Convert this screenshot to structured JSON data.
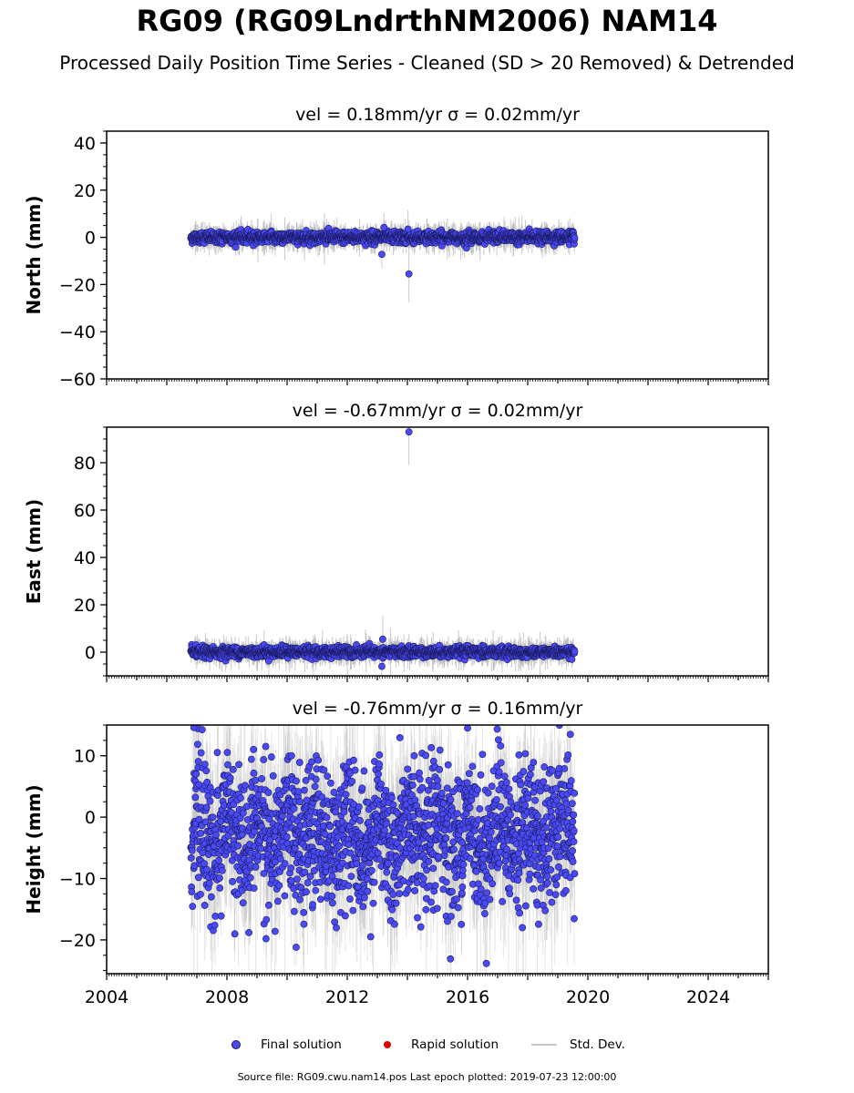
{
  "page": {
    "title": "RG09 (RG09LndrthNM2006) NAM14",
    "subtitle": "Processed Daily Position Time Series - Cleaned (SD > 20 Removed) & Detrended",
    "source_note": "Source file: RG09.cwu.nam14.pos  Last epoch plotted: 2019-07-23 12:00:00"
  },
  "legend": [
    {
      "label": "Final solution",
      "kind": "dot",
      "color": "#4a4af5"
    },
    {
      "label": "Rapid solution",
      "kind": "dot",
      "color": "#dd0000"
    },
    {
      "label": "Std. Dev.",
      "kind": "line",
      "color": "#c8c8c8"
    }
  ],
  "colors": {
    "final": "#4a4af5",
    "final_edge": "#1a1a60",
    "stddev": "#b4b4b4",
    "rapid": "#dd0000"
  },
  "chart_data": [
    {
      "type": "scatter",
      "title": "vel = 0.18mm/yr   σ = 0.02mm/yr",
      "ylabel": "North (mm)",
      "xlim": [
        2004,
        2026
      ],
      "ylim": [
        -60,
        45
      ],
      "yticks": [
        40,
        20,
        0,
        -20,
        -40,
        -60
      ],
      "xticks": [],
      "data_range": [
        2006.8,
        2019.56
      ],
      "series": [
        {
          "kind": "final_band",
          "center": 0,
          "spread": 1.2,
          "error_spread": 2.5
        },
        {
          "kind": "outliers",
          "points": [
            {
              "x": 2013.15,
              "y": -7.2,
              "err": 6
            },
            {
              "x": 2013.22,
              "y": 4.2,
              "err": 6
            },
            {
              "x": 2014.05,
              "y": -15.5,
              "err": 12
            },
            {
              "x": 2014.02,
              "y": 3.5,
              "err": 8
            }
          ]
        }
      ]
    },
    {
      "type": "scatter",
      "title": "vel = -0.67mm/yr   σ = 0.02mm/yr",
      "ylabel": "East (mm)",
      "xlim": [
        2004,
        2026
      ],
      "ylim": [
        -10,
        95
      ],
      "yticks": [
        80,
        60,
        40,
        20,
        0
      ],
      "xticks": [],
      "data_range": [
        2006.8,
        2019.56
      ],
      "series": [
        {
          "kind": "final_band",
          "center": 0,
          "spread": 1.1,
          "error_spread": 2.5
        },
        {
          "kind": "outliers",
          "points": [
            {
              "x": 2014.05,
              "y": 93,
              "err": 14
            },
            {
              "x": 2013.18,
              "y": 5.5,
              "err": 10
            },
            {
              "x": 2013.15,
              "y": -6,
              "err": 5
            }
          ]
        }
      ]
    },
    {
      "type": "scatter",
      "title": "vel = -0.76mm/yr   σ = 0.16mm/yr",
      "ylabel": "Height (mm)",
      "xlim": [
        2004,
        2026
      ],
      "ylim": [
        -25.5,
        15
      ],
      "yticks": [
        10,
        0,
        -10,
        -20
      ],
      "xticks": [
        "2004",
        "2008",
        "2012",
        "2016",
        "2020",
        "2024"
      ],
      "data_range": [
        2006.8,
        2019.56
      ],
      "series": [
        {
          "kind": "final_band",
          "center": -3,
          "spread": 5.5,
          "error_spread": 6
        },
        {
          "kind": "outliers",
          "points": [
            {
              "x": 2010.3,
              "y": -21.2,
              "err": 3
            },
            {
              "x": 2009.3,
              "y": -19.8,
              "err": 3
            },
            {
              "x": 2016.0,
              "y": 14.5,
              "err": 3
            },
            {
              "x": 2006.9,
              "y": 14.6,
              "err": 3
            }
          ]
        }
      ]
    }
  ]
}
